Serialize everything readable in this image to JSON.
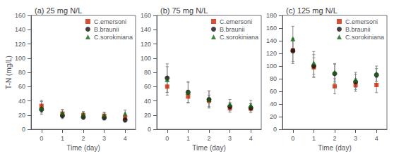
{
  "chart_data": [
    {
      "type": "scatter",
      "title": "(a) 25 mg N/L",
      "xlabel": "Time (day)",
      "ylabel": "T-N (mg/L)",
      "x": [
        0,
        1,
        2,
        3,
        4
      ],
      "xlim": [
        -0.5,
        4.5
      ],
      "xticks": [
        0,
        1,
        2,
        3,
        4
      ],
      "ylim": [
        0,
        160
      ],
      "yticks": [
        0,
        20,
        40,
        60,
        80,
        100,
        120,
        140,
        160
      ],
      "grid": false,
      "legend": "upper right",
      "series": [
        {
          "name": "C.emersoni",
          "color": "#cc2200",
          "marker": "square",
          "values": [
            33,
            22,
            20,
            19,
            16
          ],
          "errors": [
            8,
            5,
            4,
            4,
            5
          ]
        },
        {
          "name": "B.braunii",
          "color": "#111111",
          "marker": "circle",
          "values": [
            28,
            19,
            17,
            16,
            13
          ],
          "errors": [
            5,
            4,
            3,
            3,
            3
          ]
        },
        {
          "name": "C.sorokiniana",
          "color": "#116611",
          "marker": "triangle",
          "values": [
            30,
            23,
            21,
            20,
            22
          ],
          "errors": [
            9,
            5,
            4,
            4,
            5
          ]
        }
      ]
    },
    {
      "type": "scatter",
      "title": "(b) 75 mg N/L",
      "xlabel": "Time (day)",
      "x": [
        0,
        1,
        2,
        3,
        4
      ],
      "xlim": [
        -0.5,
        4.5
      ],
      "xticks": [
        0,
        1,
        2,
        3,
        4
      ],
      "ylim": [
        0,
        160
      ],
      "yticks": [
        0,
        20,
        40,
        60,
        80,
        100,
        120,
        140,
        160
      ],
      "grid": false,
      "legend": "upper right",
      "series": [
        {
          "name": "C.emersoni",
          "color": "#cc2200",
          "marker": "square",
          "values": [
            60,
            46,
            40,
            30,
            29
          ],
          "errors": [
            12,
            9,
            8,
            6,
            5
          ]
        },
        {
          "name": "B.braunii",
          "color": "#111111",
          "marker": "circle",
          "values": [
            72,
            52,
            42,
            32,
            30
          ],
          "errors": [
            20,
            15,
            12,
            6,
            6
          ]
        },
        {
          "name": "C.sorokiniana",
          "color": "#116611",
          "marker": "triangle",
          "values": [
            70,
            52,
            42,
            35,
            34
          ],
          "errors": [
            18,
            14,
            12,
            7,
            7
          ]
        }
      ]
    },
    {
      "type": "scatter",
      "title": "(c) 125 mg N/L",
      "xlabel": "Time (day)",
      "x": [
        0,
        1,
        2,
        3,
        4
      ],
      "xlim": [
        -0.5,
        4.5
      ],
      "xticks": [
        0,
        1,
        2,
        3,
        4
      ],
      "ylim": [
        0,
        180
      ],
      "yticks": [
        0,
        20,
        40,
        60,
        80,
        100,
        120,
        140,
        160,
        180
      ],
      "grid": false,
      "legend": "upper right",
      "series": [
        {
          "name": "C.emersoni",
          "color": "#cc2200",
          "marker": "square",
          "values": [
            125,
            98,
            68,
            70,
            70
          ],
          "errors": [
            18,
            15,
            12,
            10,
            12
          ]
        },
        {
          "name": "B.braunii",
          "color": "#111111",
          "marker": "circle",
          "values": [
            124,
            100,
            88,
            75,
            86
          ],
          "errors": [
            20,
            18,
            15,
            12,
            10
          ]
        },
        {
          "name": "C.sorokiniana",
          "color": "#116611",
          "marker": "triangle",
          "values": [
            143,
            105,
            90,
            78,
            88
          ],
          "errors": [
            20,
            18,
            14,
            12,
            12
          ]
        }
      ]
    }
  ]
}
